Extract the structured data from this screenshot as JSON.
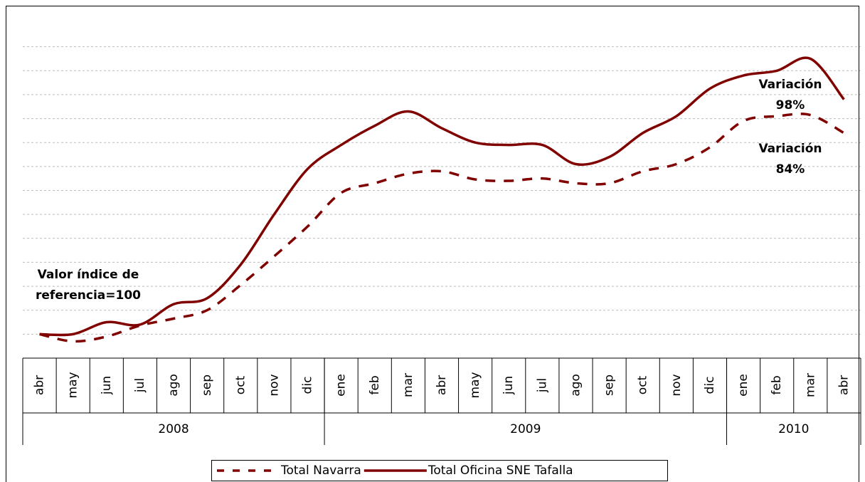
{
  "chart_data": {
    "type": "line",
    "categories": [
      "abr",
      "may",
      "jun",
      "jul",
      "ago",
      "sep",
      "oct",
      "nov",
      "dic",
      "ene",
      "feb",
      "mar",
      "abr",
      "may",
      "jun",
      "jul",
      "ago",
      "sep",
      "oct",
      "nov",
      "dic",
      "ene",
      "feb",
      "mar",
      "abr"
    ],
    "groups": [
      {
        "label": "2008",
        "span": 9
      },
      {
        "label": "2009",
        "span": 12
      },
      {
        "label": "2010",
        "span": 4
      }
    ],
    "series": [
      {
        "name": "Total Navarra",
        "color": "#800000",
        "dash": true,
        "values": [
          100,
          97,
          99,
          103.6,
          106.5,
          110,
          120.5,
          132.5,
          145,
          159,
          163,
          167,
          168,
          164.6,
          164,
          165,
          163,
          163,
          168,
          171,
          178,
          189,
          191,
          191.5,
          184
        ]
      },
      {
        "name": "Total Oficina SNE Tafalla",
        "color": "#800000",
        "dash": false,
        "values": [
          100,
          100,
          105,
          104,
          112.5,
          115,
          129,
          150,
          169,
          179,
          187,
          193,
          186,
          180,
          179,
          179,
          171,
          174,
          184,
          191,
          202.5,
          208,
          210,
          215,
          198
        ]
      }
    ],
    "ylim": [
      90,
      230
    ],
    "yticks": [
      90,
      100,
      110,
      120,
      130,
      140,
      150,
      160,
      170,
      180,
      190,
      200,
      210,
      220
    ],
    "grid": true,
    "legend": "bottom",
    "annotations": [
      {
        "lines": [
          "Valor índice de",
          "referencia=100"
        ]
      },
      {
        "lines": [
          "Variación",
          "98%"
        ]
      },
      {
        "lines": [
          "Variación",
          "84%"
        ]
      }
    ]
  }
}
